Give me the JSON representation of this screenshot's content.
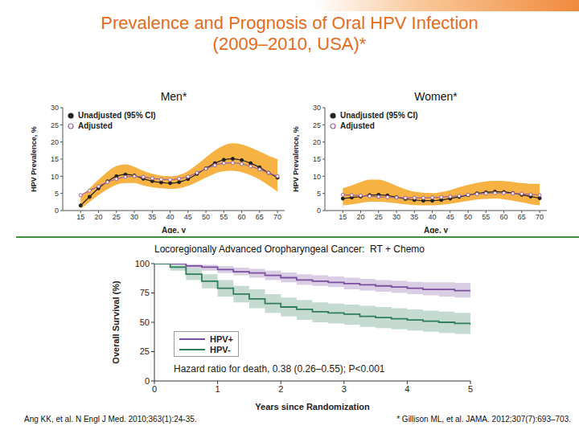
{
  "title": "Prevalence and Prognosis of Oral HPV Infection (2009–2010, USA)*",
  "chart_data": [
    {
      "type": "line",
      "title": "Men*",
      "x_label": "Age, y",
      "y_label": "HPV Prevalence, %",
      "x": [
        15,
        17.5,
        20,
        22.5,
        25,
        27.5,
        30,
        32.5,
        35,
        37.5,
        40,
        42.5,
        45,
        47.5,
        50,
        52.5,
        55,
        57.5,
        60,
        62.5,
        65,
        67.5,
        70
      ],
      "xlim": [
        10,
        72
      ],
      "xticks": [
        15,
        20,
        25,
        30,
        35,
        40,
        45,
        50,
        55,
        60,
        65,
        70
      ],
      "ylim": [
        0,
        30
      ],
      "yticks": [
        0,
        5,
        10,
        15,
        20,
        25,
        30
      ],
      "grid": false,
      "legend": "upper left",
      "series": [
        {
          "name": "Unadjusted (95% CI)",
          "color": "#222222",
          "marker": "filled circle",
          "values": [
            1.5,
            4,
            6.5,
            8.5,
            10,
            10.5,
            10.2,
            9.3,
            8.6,
            8.2,
            8.0,
            8.3,
            9.2,
            10.7,
            12.3,
            13.8,
            14.8,
            15.1,
            14.7,
            13.8,
            12.6,
            11.0,
            9.6
          ],
          "lower": [
            0.5,
            2.5,
            4.5,
            6.2,
            7.5,
            8,
            8,
            7.3,
            6.8,
            6.5,
            6.3,
            6.5,
            7.2,
            8.3,
            9.6,
            10.8,
            11.5,
            11.6,
            11.2,
            10.3,
            9.0,
            7.3,
            5.5
          ],
          "upper": [
            4,
            6.5,
            9,
            11.3,
            13,
            13.5,
            12.8,
            11.6,
            10.7,
            10.2,
            10,
            10.4,
            11.5,
            13.4,
            15.5,
            17.5,
            19,
            19.6,
            19.3,
            18.4,
            17.2,
            16,
            15
          ]
        },
        {
          "name": "Adjusted",
          "color": "#a0609a",
          "marker": "open circle",
          "values": [
            4.5,
            5.8,
            7.1,
            8.3,
            9.2,
            9.8,
            10.0,
            9.8,
            9.4,
            9.1,
            9.0,
            9.3,
            9.9,
            11.0,
            12.2,
            13.2,
            13.8,
            13.9,
            13.6,
            12.9,
            12.0,
            11.0,
            10.0
          ]
        }
      ]
    },
    {
      "type": "line",
      "title": "Women*",
      "x_label": "Age, y",
      "y_label": "HPV Prevalence, %",
      "x": [
        15,
        17.5,
        20,
        22.5,
        25,
        27.5,
        30,
        32.5,
        35,
        37.5,
        40,
        42.5,
        45,
        47.5,
        50,
        52.5,
        55,
        57.5,
        60,
        62.5,
        65,
        67.5,
        70
      ],
      "xlim": [
        10,
        72
      ],
      "xticks": [
        15,
        20,
        25,
        30,
        35,
        40,
        45,
        50,
        55,
        60,
        65,
        70
      ],
      "ylim": [
        0,
        30
      ],
      "yticks": [
        0,
        5,
        10,
        15,
        20,
        25,
        30
      ],
      "grid": false,
      "legend": "upper left",
      "series": [
        {
          "name": "Unadjusted (95% CI)",
          "color": "#222222",
          "marker": "filled circle",
          "values": [
            3.5,
            3.8,
            4.1,
            4.5,
            4.6,
            4.4,
            3.9,
            3.4,
            3.1,
            2.9,
            2.9,
            3.1,
            3.5,
            4.0,
            4.5,
            5.0,
            5.3,
            5.5,
            5.4,
            5.1,
            4.6,
            4.1,
            3.6
          ],
          "lower": [
            1.5,
            1.8,
            2.2,
            2.6,
            2.6,
            2.4,
            2.1,
            1.8,
            1.6,
            1.5,
            1.5,
            1.7,
            2,
            2.4,
            2.8,
            3.2,
            3.4,
            3.5,
            3.3,
            2.9,
            2.4,
            1.9,
            1.5
          ],
          "upper": [
            6.5,
            7.3,
            8.3,
            9,
            9,
            8.3,
            7.2,
            6.2,
            5.5,
            5.2,
            5.1,
            5.4,
            6,
            6.8,
            7.5,
            8.1,
            8.5,
            8.7,
            8.6,
            8.3,
            8,
            7.8,
            7.8
          ]
        },
        {
          "name": "Adjusted",
          "color": "#a0609a",
          "marker": "open circle",
          "values": [
            4.6,
            4.5,
            4.4,
            4.2,
            4.0,
            3.9,
            3.8,
            3.7,
            3.7,
            3.7,
            3.8,
            3.9,
            4.1,
            4.3,
            4.6,
            4.8,
            5.0,
            5.1,
            5.1,
            5.0,
            4.9,
            4.7,
            4.5
          ]
        }
      ]
    },
    {
      "type": "line",
      "title": "Locoregionally Advanced Oropharyngeal Cancer:  RT + Chemo",
      "x_label": "Years since Randomization",
      "y_label": "Overall Survival (%)",
      "x": [
        0,
        0.25,
        0.5,
        0.75,
        1,
        1.25,
        1.5,
        1.75,
        2,
        2.25,
        2.5,
        2.75,
        3,
        3.25,
        3.5,
        3.75,
        4,
        4.25,
        4.5,
        4.75,
        5
      ],
      "xlim": [
        0,
        5
      ],
      "xticks": [
        0,
        1,
        2,
        3,
        4,
        5
      ],
      "ylim": [
        0,
        100
      ],
      "yticks": [
        0,
        25,
        50,
        75,
        100
      ],
      "grid": false,
      "legend": "lower left",
      "annotation": "Hazard ratio for death, 0.38 (0.26–0.55); P<0.001",
      "series": [
        {
          "name": "HPV+",
          "color": "#7b4fa0",
          "line_style": "step",
          "values": [
            100,
            100,
            98,
            97,
            95,
            93,
            92,
            90,
            88,
            86,
            85,
            84,
            83,
            82,
            81,
            80,
            79,
            78,
            78,
            77,
            77
          ],
          "lower": [
            100,
            100,
            96,
            94,
            92,
            90,
            88,
            86,
            84,
            82,
            81,
            80,
            78,
            77,
            76,
            75,
            74,
            73,
            72,
            71,
            71
          ],
          "upper": [
            100,
            100,
            99.5,
            99,
            98,
            96.5,
            95.5,
            94,
            92.5,
            91,
            90,
            89,
            88,
            87,
            86,
            85.5,
            84.5,
            84,
            84,
            83.5,
            83.5
          ]
        },
        {
          "name": "HPV-",
          "color": "#2e7d5b",
          "line_style": "step",
          "values": [
            100,
            97,
            91,
            85,
            79,
            74,
            70,
            66,
            63,
            61,
            59,
            58,
            57,
            55,
            54,
            53,
            52,
            51,
            50,
            49,
            48
          ],
          "lower": [
            100,
            94,
            86,
            79,
            72,
            67,
            62,
            58,
            55,
            52,
            50,
            49,
            48,
            46,
            45,
            44,
            43,
            42,
            41,
            40,
            39
          ],
          "upper": [
            100,
            99.5,
            96,
            91,
            86,
            81,
            78,
            74,
            71,
            69,
            67,
            66,
            65,
            64,
            63,
            62,
            61,
            60,
            59,
            58,
            57
          ]
        }
      ]
    }
  ],
  "references": [
    "Ang KK, et al. N Engl J Med. 2010;363(1):24-35.",
    "* Gillison ML, et al. JAMA. 2012;307(7):693–703."
  ]
}
